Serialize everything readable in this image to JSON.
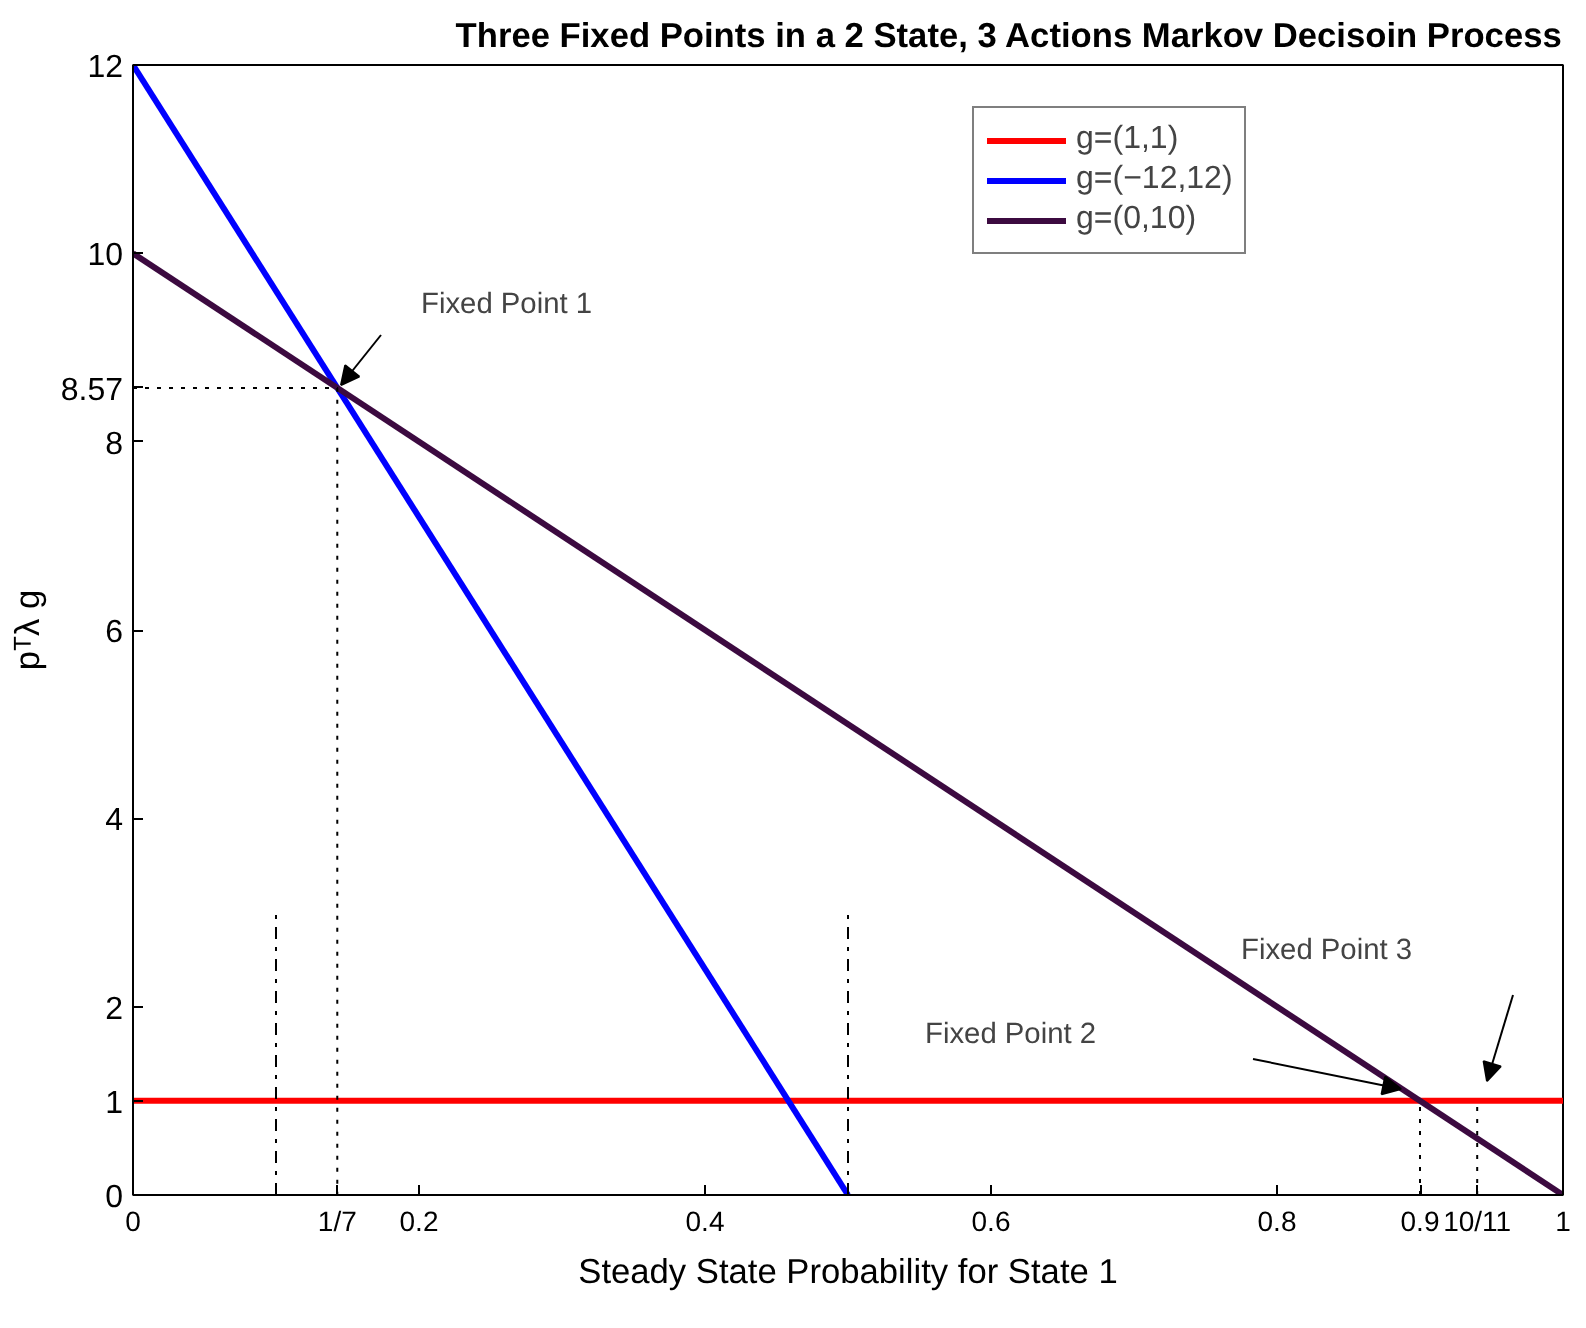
{
  "chart_data": {
    "type": "line",
    "title": "Three Fixed Points in a 2 State, 3 Actions Markov Decisoin Process",
    "xlabel": "Steady State Probability for State 1",
    "ylabel": "pᵀλ g",
    "series": [
      {
        "name": "g=(1,1)",
        "color": "#ff0000",
        "x": [
          0,
          1
        ],
        "values": [
          1,
          1
        ]
      },
      {
        "name": "g=(−12,12)",
        "color": "#0000ff",
        "x": [
          0,
          0.5
        ],
        "values": [
          12,
          0
        ]
      },
      {
        "name": "g=(0,10)",
        "color": "#3c0a40",
        "x": [
          0,
          1
        ],
        "values": [
          10,
          0
        ]
      },
      {
        "color": "#000000",
        "x": [
          0,
          0.142857,
          0.142857
        ],
        "values": [
          8.57,
          8.57,
          0
        ],
        "line_style": "dotted"
      },
      {
        "color": "#000000",
        "x": [
          0.9,
          0.9
        ],
        "values": [
          0,
          1
        ],
        "line_style": "dotted"
      },
      {
        "color": "#000000",
        "x": [
          0.94,
          0.94
        ],
        "values": [
          0,
          1
        ],
        "line_style": "dotted"
      },
      {
        "color": "#000000",
        "x": [
          0.1,
          0.1
        ],
        "values": [
          0,
          3
        ],
        "line_style": "dashed"
      },
      {
        "color": "#000000",
        "x": [
          0.5,
          0.5
        ],
        "values": [
          0,
          3
        ],
        "line_style": "dashed"
      }
    ],
    "annotations": [
      "Fixed Point 1",
      "Fixed Point 2",
      "Fixed Point 3"
    ],
    "xlim": [
      0,
      1
    ],
    "ylim": [
      0,
      12
    ],
    "xticks": [
      0,
      0.2,
      0.4,
      0.6,
      0.8,
      1,
      {
        "value": 0.142857,
        "label": "1/7"
      },
      {
        "value": 0.9,
        "label": "0.9"
      },
      {
        "value": 0.94,
        "label": "10/11"
      }
    ],
    "yticks": [
      0,
      2,
      4,
      6,
      8,
      10,
      12,
      {
        "value": 1,
        "label": "1"
      },
      {
        "value": 8.57,
        "label": "8.57"
      }
    ],
    "legend": "top right",
    "grid": false,
    "line_style": "solid",
    "marker": "none"
  }
}
